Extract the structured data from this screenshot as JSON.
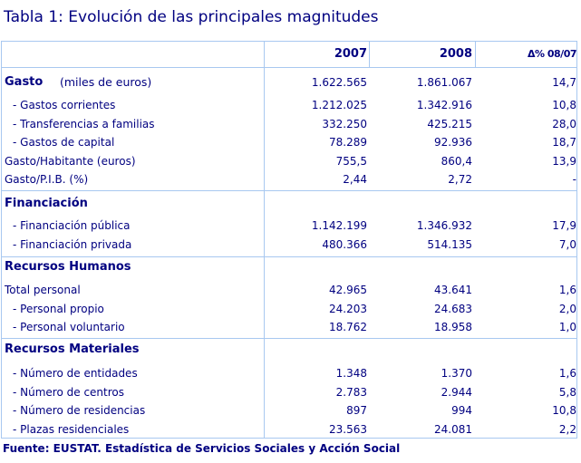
{
  "title": "Tabla 1: Evolución de las principales magnitudes",
  "header": {
    "col1": "2007",
    "col2": "2008",
    "col3": "Δ% 08/07"
  },
  "sections": [
    {
      "title": "Gasto",
      "subtitle": "(miles de euros)",
      "values": [
        "1.622.565",
        "1.861.067",
        "14,7"
      ],
      "rows": [
        {
          "label": "- Gastos corrientes",
          "indent": true,
          "values": [
            "1.212.025",
            "1.342.916",
            "10,8"
          ]
        },
        {
          "label": "- Transferencias a familias",
          "indent": true,
          "values": [
            "332.250",
            "425.215",
            "28,0"
          ]
        },
        {
          "label": "- Gastos de capital",
          "indent": true,
          "values": [
            "78.289",
            "92.936",
            "18,7"
          ]
        },
        {
          "label": "Gasto/Habitante (euros)",
          "indent": false,
          "values": [
            "755,5",
            "860,4",
            "13,9"
          ]
        },
        {
          "label": "Gasto/P.I.B. (%)",
          "indent": false,
          "values": [
            "2,44",
            "2,72",
            "-"
          ]
        }
      ]
    },
    {
      "title": "Financiación",
      "subtitle": "",
      "values": null,
      "rows": [
        {
          "label": "- Financiación pública",
          "indent": true,
          "values": [
            "1.142.199",
            "1.346.932",
            "17,9"
          ]
        },
        {
          "label": "- Financiación privada",
          "indent": true,
          "values": [
            "480.366",
            "514.135",
            "7,0"
          ]
        }
      ]
    },
    {
      "title": "Recursos Humanos",
      "subtitle": "",
      "values": null,
      "rows": [
        {
          "label": "Total personal",
          "indent": false,
          "values": [
            "42.965",
            "43.641",
            "1,6"
          ]
        },
        {
          "label": "- Personal propio",
          "indent": true,
          "values": [
            "24.203",
            "24.683",
            "2,0"
          ]
        },
        {
          "label": "- Personal voluntario",
          "indent": true,
          "values": [
            "18.762",
            "18.958",
            "1,0"
          ]
        }
      ]
    },
    {
      "title": "Recursos Materiales",
      "subtitle": "",
      "values": null,
      "rows": [
        {
          "label": "- Número de entidades",
          "indent": true,
          "values": [
            "1.348",
            "1.370",
            "1,6"
          ]
        },
        {
          "label": "- Número de centros",
          "indent": true,
          "values": [
            "2.783",
            "2.944",
            "5,8"
          ]
        },
        {
          "label": "- Número de residencias",
          "indent": true,
          "values": [
            "897",
            "994",
            "10,8"
          ]
        },
        {
          "label": "- Plazas residenciales",
          "indent": true,
          "values": [
            "23.563",
            "24.081",
            "2,2"
          ]
        }
      ]
    }
  ],
  "source": "Fuente: EUSTAT. Estadística de Servicios Sociales y Acción Social",
  "colors": {
    "text": "#000080",
    "border": "#a8c8f0"
  }
}
